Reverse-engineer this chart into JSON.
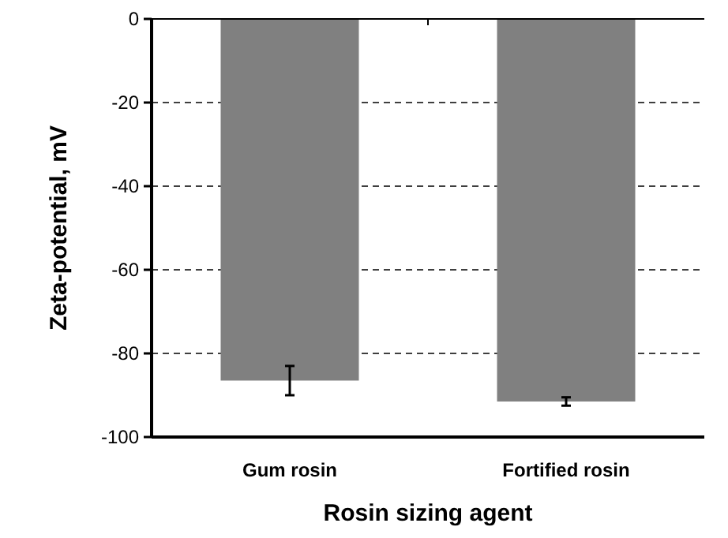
{
  "chart_data": {
    "type": "bar",
    "xlabel": "Rosin sizing agent",
    "ylabel": "Zeta-potential, mV",
    "categories": [
      "Gum rosin",
      "Fortified rosin"
    ],
    "values": [
      -86.5,
      -91.5
    ],
    "errors": [
      3.5,
      1
    ],
    "color": "#808080",
    "ylim": [
      -100,
      0
    ],
    "yticks": [
      -100,
      -80,
      -60,
      -40,
      -20,
      0
    ],
    "grid": "y"
  }
}
